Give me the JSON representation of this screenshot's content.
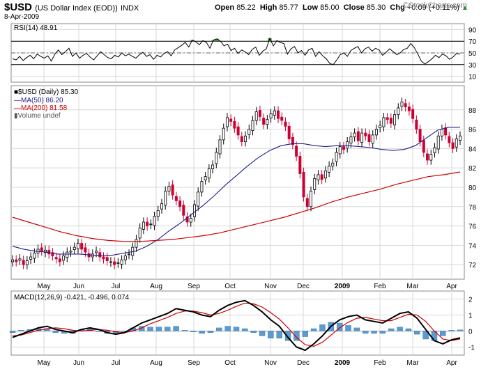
{
  "header": {
    "symbol": "$USD",
    "name": "(US Dollar Index (EOD))",
    "exchange": "INDX",
    "date": "8-Apr-2009",
    "open_label": "Open",
    "open": "85.22",
    "high_label": "High",
    "high": "85.77",
    "low_label": "Low",
    "low": "85.00",
    "close_label": "Close",
    "close": "85.30",
    "chg_label": "Chg",
    "chg": "+0.09 (+0.11%)",
    "brand": "©StockCharts.com",
    "up_arrow": "▲"
  },
  "chart_data": [
    {
      "type": "line",
      "panel": "rsi",
      "title": "RSI(14) 48.91",
      "ylim": [
        0,
        100
      ],
      "yticks": [
        10,
        30,
        50,
        70,
        90
      ],
      "overbought": 70,
      "oversold": 30,
      "midline": 50,
      "series": [
        {
          "name": "RSI(14)",
          "color": "#000000",
          "values": [
            40,
            38,
            44,
            37,
            42,
            46,
            40,
            48,
            44,
            41,
            45,
            36,
            48,
            55,
            47,
            52,
            58,
            44,
            50,
            41,
            46,
            49,
            43,
            38,
            45,
            52,
            47,
            42,
            40,
            46,
            43,
            50,
            45,
            48,
            44,
            41,
            47,
            51,
            44,
            47,
            39,
            46,
            43,
            49,
            52,
            45,
            55,
            59,
            63,
            68,
            60,
            72,
            69,
            64,
            71,
            68,
            58,
            72,
            74,
            70,
            62,
            65,
            54,
            58,
            49,
            55,
            52,
            47,
            56,
            60,
            46,
            53,
            57,
            75,
            62,
            71,
            68,
            66,
            48,
            57,
            61,
            50,
            54,
            46,
            55,
            58,
            44,
            52,
            45,
            40,
            32,
            30,
            38,
            47,
            50,
            44,
            54,
            58,
            61,
            50,
            57,
            60,
            53,
            58,
            55,
            46,
            51,
            57,
            52,
            47,
            50,
            56,
            58,
            66,
            59,
            48,
            36,
            31,
            35,
            40,
            46,
            42,
            48,
            45,
            39,
            43,
            49,
            48
          ]
        }
      ]
    },
    {
      "type": "candlestick",
      "panel": "price",
      "title": "$USD (Daily) 85.30",
      "legend": [
        "MA(50) 86.20",
        "MA(200) 81.58",
        "Volume undef"
      ],
      "ylim": [
        70.5,
        90.5
      ],
      "yticks": [
        72,
        74,
        76,
        78,
        80,
        82,
        84,
        86,
        88
      ],
      "xlabels": [
        "May",
        "Jun",
        "Jul",
        "Aug",
        "Sep",
        "Oct",
        "Nov",
        "Dec",
        "2009",
        "Feb",
        "Mar",
        "Apr"
      ],
      "series": [
        {
          "name": "$USD close",
          "values": [
            72.5,
            72.3,
            72.6,
            72.0,
            72.4,
            72.8,
            73.2,
            73.6,
            73.4,
            73.5,
            73.1,
            72.9,
            72.6,
            72.3,
            72.9,
            73.3,
            73.4,
            73.8,
            74.2,
            73.6,
            73.3,
            72.8,
            73.1,
            73.4,
            72.8,
            72.6,
            72.4,
            72.3,
            72.0,
            72.2,
            72.5,
            72.9,
            73.1,
            73.8,
            74.6,
            75.8,
            76.4,
            76.0,
            76.2,
            77.0,
            77.6,
            78.3,
            79.6,
            80.1,
            79.2,
            78.6,
            78.0,
            77.1,
            76.4,
            76.8,
            78.2,
            79.5,
            80.6,
            81.1,
            81.9,
            82.3,
            83.6,
            84.9,
            86.1,
            87.2,
            86.8,
            86.1,
            85.4,
            84.7,
            85.3,
            86.0,
            86.9,
            87.8,
            87.3,
            86.5,
            87.0,
            87.6,
            87.9,
            87.1,
            86.9,
            86.3,
            85.0,
            84.4,
            83.2,
            81.4,
            79.0,
            78.0,
            79.6,
            80.9,
            81.3,
            80.8,
            81.7,
            82.2,
            82.5,
            83.6,
            84.2,
            83.9,
            84.7,
            85.2,
            85.6,
            84.8,
            85.6,
            85.3,
            84.7,
            85.4,
            86.0,
            86.4,
            87.2,
            87.0,
            86.6,
            87.5,
            88.2,
            88.8,
            88.3,
            87.9,
            87.1,
            86.0,
            84.7,
            83.6,
            82.8,
            83.4,
            84.1,
            85.3,
            86.0,
            85.4,
            84.6,
            84.0,
            85.0,
            85.3
          ]
        },
        {
          "name": "MA(50)",
          "color": "#1c1c8c",
          "values": [
            73.9,
            73.6,
            73.4,
            73.3,
            73.1,
            73.1,
            73.1,
            73.0,
            72.9,
            73.0,
            73.2,
            73.4,
            73.9,
            74.6,
            75.5,
            76.3,
            77.2,
            78.1,
            79.1,
            80.2,
            81.2,
            82.2,
            83.1,
            83.8,
            84.3,
            84.5,
            84.5,
            84.3,
            84.2,
            84.3,
            84.3,
            84.2,
            84.1,
            83.9,
            83.8,
            83.9,
            84.3,
            85.1,
            85.9,
            86.2,
            86.2
          ]
        },
        {
          "name": "MA(200)",
          "color": "#cc0000",
          "values": [
            76.9,
            76.4,
            75.9,
            75.4,
            75.0,
            74.7,
            74.5,
            74.4,
            74.4,
            74.5,
            74.6,
            74.8,
            75.0,
            75.3,
            75.7,
            76.1,
            76.5,
            76.9,
            77.4,
            77.9,
            78.5,
            79.0,
            79.4,
            79.8,
            80.3,
            80.7,
            81.1,
            81.3,
            81.58
          ]
        }
      ]
    },
    {
      "type": "line",
      "panel": "macd",
      "title": "MACD(12,26,9) -0.421, -0.496, 0.074",
      "ylim": [
        -1.5,
        2.5
      ],
      "yticks": [
        -1,
        0,
        1,
        2
      ],
      "xlabels": [
        "May",
        "Jun",
        "Jul",
        "Aug",
        "Sep",
        "Oct",
        "Nov",
        "Dec",
        "2009",
        "Feb",
        "Mar",
        "Apr"
      ],
      "series": [
        {
          "name": "MACD",
          "color": "#000000",
          "values": [
            -0.4,
            -0.2,
            0.0,
            0.2,
            0.3,
            0.1,
            0.0,
            -0.1,
            0.1,
            0.2,
            0.1,
            -0.1,
            -0.2,
            -0.1,
            0.2,
            0.5,
            0.7,
            0.9,
            1.1,
            1.4,
            1.3,
            1.2,
            1.0,
            0.9,
            1.3,
            1.6,
            1.8,
            1.9,
            1.6,
            1.2,
            0.7,
            0.3,
            -0.4,
            -1.0,
            -1.2,
            -0.8,
            -0.3,
            0.3,
            0.7,
            0.9,
            1.0,
            0.7,
            0.6,
            0.5,
            0.8,
            1.1,
            1.2,
            0.8,
            0.1,
            -0.6,
            -0.8,
            -0.55,
            -0.421
          ]
        },
        {
          "name": "Signal",
          "color": "#cc0000",
          "values": [
            -0.3,
            -0.25,
            -0.1,
            0.05,
            0.15,
            0.2,
            0.15,
            0.05,
            0.0,
            0.05,
            0.1,
            0.05,
            -0.05,
            -0.1,
            0.0,
            0.2,
            0.45,
            0.65,
            0.85,
            1.1,
            1.25,
            1.25,
            1.15,
            1.0,
            1.1,
            1.3,
            1.55,
            1.75,
            1.7,
            1.5,
            1.15,
            0.75,
            0.2,
            -0.4,
            -0.85,
            -0.95,
            -0.7,
            -0.25,
            0.2,
            0.55,
            0.8,
            0.85,
            0.75,
            0.65,
            0.65,
            0.85,
            1.05,
            1.0,
            0.6,
            0.0,
            -0.5,
            -0.6,
            -0.496
          ]
        },
        {
          "name": "Histogram",
          "color": "#3e86c0",
          "values": [
            -0.1,
            0.05,
            0.1,
            0.15,
            0.15,
            -0.1,
            -0.15,
            -0.15,
            0.1,
            0.15,
            0.0,
            -0.15,
            -0.15,
            0.0,
            0.2,
            0.3,
            0.25,
            0.25,
            0.25,
            0.3,
            0.05,
            -0.05,
            -0.15,
            -0.1,
            0.2,
            0.3,
            0.25,
            0.15,
            -0.1,
            -0.3,
            -0.45,
            -0.45,
            -0.6,
            -0.6,
            -0.35,
            0.15,
            0.4,
            0.55,
            0.5,
            0.35,
            0.2,
            -0.15,
            -0.15,
            -0.15,
            0.15,
            0.25,
            0.15,
            -0.2,
            -0.5,
            -0.6,
            -0.3,
            0.05,
            0.074
          ]
        }
      ]
    }
  ]
}
